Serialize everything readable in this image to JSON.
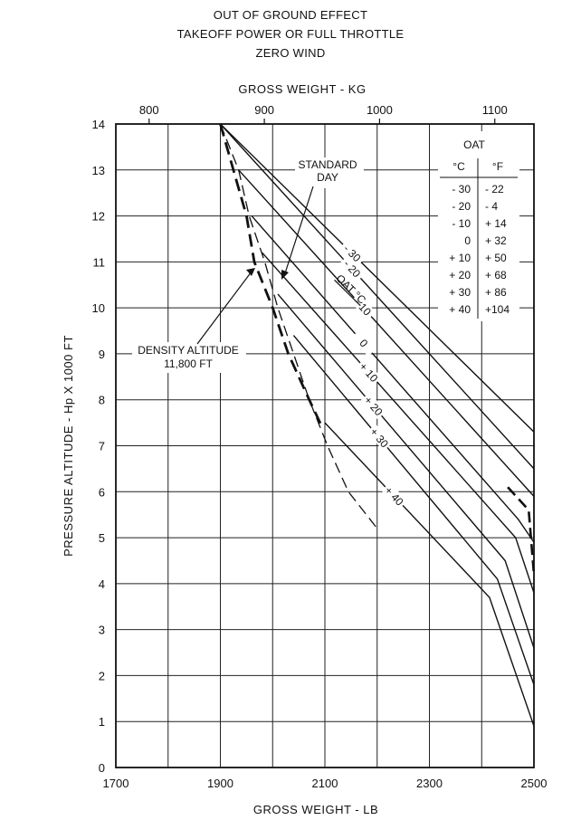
{
  "header": {
    "lines": [
      "OUT OF GROUND EFFECT",
      "TAKEOFF POWER OR FULL THROTTLE",
      "ZERO WIND"
    ]
  },
  "chart_data": {
    "type": "line",
    "xlabel": "GROSS WEIGHT - LB",
    "x2label": "GROSS WEIGHT - KG",
    "ylabel": "PRESSURE ALTITUDE - Hp X 1000 FT",
    "xlim": [
      1700,
      2500
    ],
    "ylim": [
      0,
      14
    ],
    "x_ticks": [
      1700,
      1900,
      2100,
      2300,
      2500
    ],
    "x_minor": [
      1800,
      2000,
      2200,
      2400
    ],
    "x2_ticks": [
      800,
      900,
      1000,
      1100
    ],
    "y_ticks": [
      0,
      1,
      2,
      3,
      4,
      5,
      6,
      7,
      8,
      9,
      10,
      11,
      12,
      13,
      14
    ],
    "grid": true,
    "series": [
      {
        "name": "- 30",
        "points": [
          [
            1900,
            14
          ],
          [
            2500,
            7.3
          ]
        ]
      },
      {
        "name": "- 20",
        "points": [
          [
            1900,
            14
          ],
          [
            2500,
            6.5
          ]
        ]
      },
      {
        "name": "- 10",
        "points": [
          [
            1935,
            13
          ],
          [
            2500,
            5.9
          ]
        ]
      },
      {
        "name": "0",
        "points": [
          [
            1960,
            12
          ],
          [
            2470,
            5.4
          ],
          [
            2500,
            4.9
          ]
        ]
      },
      {
        "name": "+ 10",
        "points": [
          [
            1980,
            11.2
          ],
          [
            2465,
            5.0
          ],
          [
            2500,
            3.8
          ]
        ]
      },
      {
        "name": "+ 20",
        "points": [
          [
            2010,
            10.3
          ],
          [
            2445,
            4.5
          ],
          [
            2500,
            2.6
          ]
        ]
      },
      {
        "name": "+ 30",
        "points": [
          [
            2040,
            9.4
          ],
          [
            2430,
            4.1
          ],
          [
            2500,
            1.8
          ]
        ]
      },
      {
        "name": "+ 40",
        "points": [
          [
            2100,
            7.5
          ],
          [
            2415,
            3.7
          ],
          [
            2500,
            0.9
          ]
        ]
      }
    ],
    "standard_day_line": [
      [
        1900,
        14
      ],
      [
        1935,
        13
      ],
      [
        1955,
        12
      ],
      [
        1985,
        11
      ],
      [
        2010,
        10
      ],
      [
        2040,
        9
      ],
      [
        2070,
        8
      ],
      [
        2105,
        7
      ],
      [
        2145,
        6
      ],
      [
        2200,
        5.2
      ]
    ],
    "left_dashed_boundary": [
      [
        1900,
        14
      ],
      [
        1925,
        13
      ],
      [
        1950,
        12
      ],
      [
        1965,
        11
      ],
      [
        2000,
        10
      ],
      [
        2030,
        9
      ],
      [
        2070,
        8
      ],
      [
        2095,
        7.4
      ]
    ],
    "right_dashed_boundary": [
      [
        2450,
        6.1
      ],
      [
        2490,
        5.6
      ],
      [
        2500,
        4.2
      ]
    ],
    "oat_title": "OAT °C",
    "annotations": {
      "standard_day": [
        "STANDARD",
        "DAY"
      ],
      "density_altitude": [
        "DENSITY ALTITUDE",
        "11,800 FT"
      ]
    },
    "oat_table": {
      "title": "OAT",
      "headers": [
        "°C",
        "°F"
      ],
      "rows": [
        [
          "- 30",
          "- 22"
        ],
        [
          "- 20",
          "-  4"
        ],
        [
          "- 10",
          "+ 14"
        ],
        [
          "0",
          "+ 32"
        ],
        [
          "+ 10",
          "+ 50"
        ],
        [
          "+ 20",
          "+ 68"
        ],
        [
          "+ 30",
          "+ 86"
        ],
        [
          "+ 40",
          "+104"
        ]
      ]
    }
  }
}
